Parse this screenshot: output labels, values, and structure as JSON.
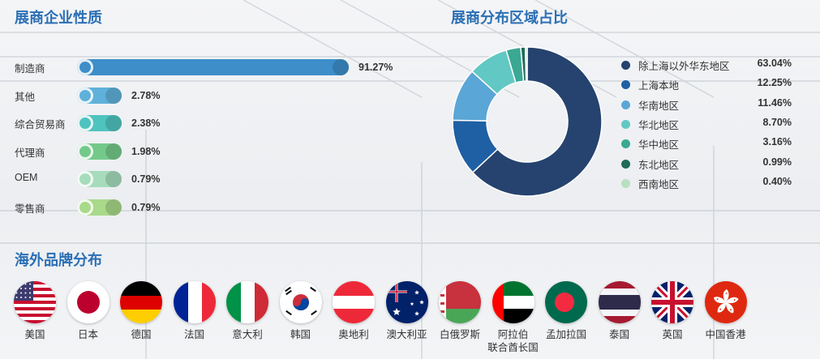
{
  "sections": {
    "exhibitor_nature": "展商企业性质",
    "region_share": "展商分布区域占比",
    "overseas_brands": "海外品牌分布"
  },
  "chart_data": [
    {
      "type": "bar",
      "orientation": "horizontal",
      "title": "展商企业性质",
      "categories": [
        "制造商",
        "其他",
        "综合贸易商",
        "代理商",
        "OEM",
        "零售商"
      ],
      "values": [
        91.27,
        2.78,
        2.38,
        1.98,
        0.79,
        0.79
      ],
      "value_labels": [
        "91.27%",
        "2.78%",
        "2.38%",
        "1.98%",
        "0.79%",
        "0.79%"
      ],
      "colors": [
        "#3d8ec9",
        "#5fb1da",
        "#4fc3bf",
        "#74c98a",
        "#a6dcbc",
        "#a9d98a"
      ]
    },
    {
      "type": "pie",
      "style": "donut",
      "title": "展商分布区域占比",
      "categories": [
        "除上海以外华东地区",
        "上海本地",
        "华南地区",
        "华北地区",
        "华中地区",
        "东北地区",
        "西南地区"
      ],
      "values": [
        63.04,
        12.25,
        11.46,
        8.7,
        3.16,
        0.99,
        0.4
      ],
      "value_labels": [
        "63.04%",
        "12.25%",
        "11.46%",
        "8.70%",
        "3.16%",
        "0.99%",
        "0.40%"
      ],
      "colors": [
        "#25436e",
        "#1f5fa3",
        "#5aa6d6",
        "#62c8c4",
        "#3aa893",
        "#226b59",
        "#b8dfc2"
      ],
      "legend": "right"
    }
  ],
  "flags": [
    {
      "name": "美国",
      "icon": "flag-usa"
    },
    {
      "name": "日本",
      "icon": "flag-japan"
    },
    {
      "name": "德国",
      "icon": "flag-germany"
    },
    {
      "name": "法国",
      "icon": "flag-france"
    },
    {
      "name": "意大利",
      "icon": "flag-italy"
    },
    {
      "name": "韩国",
      "icon": "flag-korea"
    },
    {
      "name": "奥地利",
      "icon": "flag-austria"
    },
    {
      "name": "澳大利亚",
      "icon": "flag-australia"
    },
    {
      "name": "白俄罗斯",
      "icon": "flag-belarus"
    },
    {
      "name": "阿拉伯\n联合酋长国",
      "icon": "flag-uae"
    },
    {
      "name": "孟加拉国",
      "icon": "flag-bangladesh"
    },
    {
      "name": "泰国",
      "icon": "flag-thailand"
    },
    {
      "name": "英国",
      "icon": "flag-uk"
    },
    {
      "name": "中国香港",
      "icon": "flag-hongkong"
    }
  ]
}
